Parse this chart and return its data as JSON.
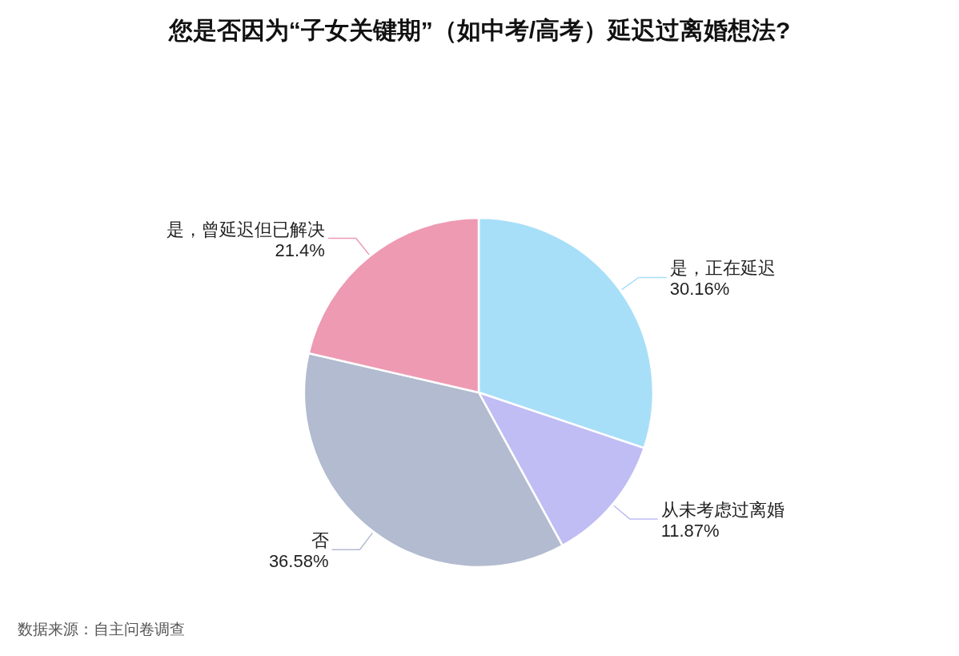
{
  "chart_data": {
    "type": "pie",
    "title": "您是否因为“子女关键期”（如中考/高考）延迟过离婚想法?",
    "categories": [
      "是，正在延迟",
      "从未考虑过离婚",
      "否",
      "是，曾延迟但已解决"
    ],
    "values": [
      30.16,
      11.87,
      36.58,
      21.4
    ],
    "colors": [
      "#a8dff8",
      "#c0bcf4",
      "#b2bbcf",
      "#ee9ab3"
    ],
    "value_labels": [
      "30.16%",
      "11.87%",
      "36.58%",
      "21.4%"
    ],
    "annotations": [
      "数据来源：自主问卷调查"
    ]
  }
}
